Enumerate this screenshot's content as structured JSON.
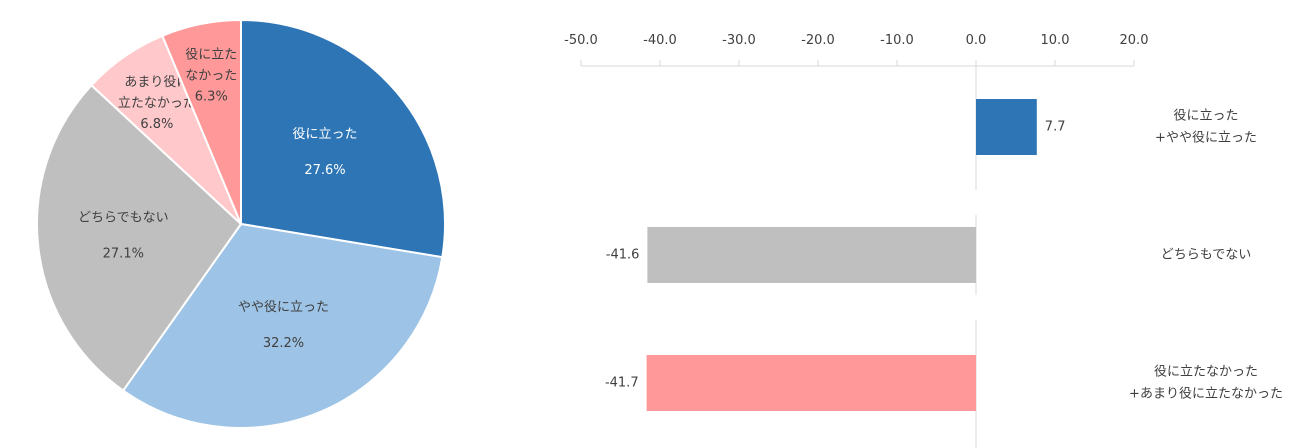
{
  "chart_data": [
    {
      "type": "pie",
      "title": "",
      "slices": [
        {
          "lines": [
            "役に立った"
          ],
          "value": 27.6,
          "value_label": "27.6%",
          "color": "#2e75b6",
          "text_color": "#ffffff"
        },
        {
          "lines": [
            "やや役に立った"
          ],
          "value": 32.2,
          "value_label": "32.2%",
          "color": "#9dc3e6",
          "text_color": "#404040"
        },
        {
          "lines": [
            "どちらでもない"
          ],
          "value": 27.1,
          "value_label": "27.1%",
          "color": "#bfbfbf",
          "text_color": "#404040"
        },
        {
          "lines": [
            "あまり役に",
            "立たなかった"
          ],
          "value": 6.8,
          "value_label": "6.8%",
          "color": "#ffc9cc",
          "text_color": "#404040"
        },
        {
          "lines": [
            "役に立た",
            "なかった"
          ],
          "value": 6.3,
          "value_label": "6.3%",
          "color": "#ff9999",
          "text_color": "#404040"
        }
      ]
    },
    {
      "type": "bar",
      "orientation": "horizontal",
      "xlim": [
        -50,
        20
      ],
      "ticks": [
        "-50.0",
        "-40.0",
        "-30.0",
        "-20.0",
        "-10.0",
        "0.0",
        "10.0",
        "20.0"
      ],
      "tick_values": [
        -50,
        -40,
        -30,
        -20,
        -10,
        0,
        10,
        20
      ],
      "bars": [
        {
          "category_lines": [
            "役に立った",
            "+やや役に立った"
          ],
          "value": 7.7,
          "value_label": "7.7",
          "color": "#2e75b6"
        },
        {
          "category_lines": [
            "どちらもでない"
          ],
          "value": -41.6,
          "value_label": "-41.6",
          "color": "#bfbfbf"
        },
        {
          "category_lines": [
            "役に立たなかった",
            "+あまり役に立たなかった"
          ],
          "value": -41.7,
          "value_label": "-41.7",
          "color": "#ff9999"
        }
      ]
    }
  ]
}
